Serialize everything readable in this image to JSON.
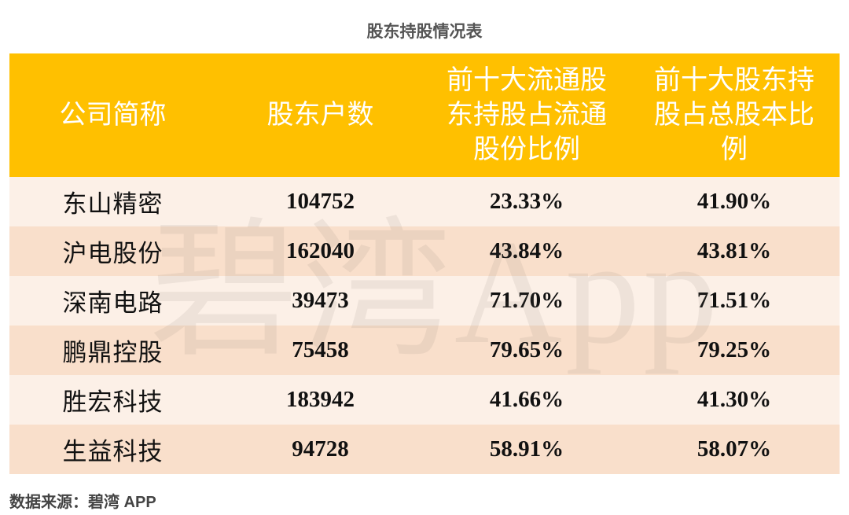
{
  "title": "股东持股情况表",
  "watermark": "碧湾App",
  "table": {
    "header": [
      "公司简称",
      "股东户数",
      "前十大流通股东持股占流通股份比例",
      "前十大股东持股占总股本比例"
    ],
    "rows": [
      [
        "东山精密",
        "104752",
        "23.33%",
        "41.90%"
      ],
      [
        "沪电股份",
        "162040",
        "43.84%",
        "43.81%"
      ],
      [
        "深南电路",
        "39473",
        "71.70%",
        "71.51%"
      ],
      [
        "鹏鼎控股",
        "75458",
        "79.65%",
        "79.25%"
      ],
      [
        "胜宏科技",
        "183942",
        "41.66%",
        "41.30%"
      ],
      [
        "生益科技",
        "94728",
        "58.91%",
        "58.07%"
      ]
    ]
  },
  "footer": "数据来源：碧湾 APP"
}
